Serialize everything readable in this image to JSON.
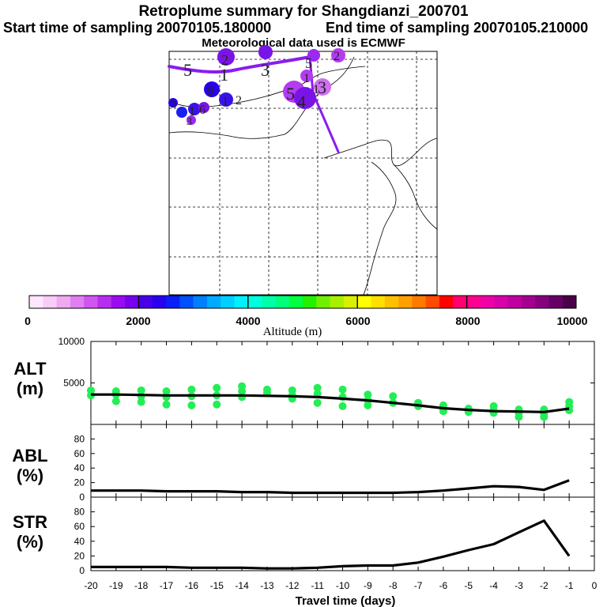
{
  "header": {
    "title": "Retroplume summary for Shangdianzi_200701",
    "start": "Start time of sampling 20070105.180000",
    "end": "End time of sampling 20070105.210000",
    "met": "Meteorological data used is ECMWF"
  },
  "map": {
    "labels": [
      "5",
      "1",
      "2",
      "3",
      "5",
      "2",
      "1",
      "5",
      "4",
      "1",
      "3",
      "9",
      "1",
      "2",
      "1",
      "6",
      "3",
      "2"
    ]
  },
  "colorbar": {
    "title": "Altitude (m)",
    "ticks": [
      "0",
      "2000",
      "4000",
      "6000",
      "8000",
      "10000"
    ],
    "min": 0,
    "max": 10000,
    "colors": [
      "#ffe6ff",
      "#f7ccf7",
      "#eeaaee",
      "#e07ff0",
      "#d055f0",
      "#b82cf0",
      "#9a0cf0",
      "#7800ee",
      "#4800e8",
      "#2a00f0",
      "#0a1ef5",
      "#0050ff",
      "#0080ff",
      "#00aaff",
      "#00cfff",
      "#00f0ff",
      "#00ffdd",
      "#00ffaa",
      "#00ff7a",
      "#00ff40",
      "#22f000",
      "#70f000",
      "#a8f000",
      "#d8f000",
      "#ffff00",
      "#ffe000",
      "#ffc000",
      "#ffa000",
      "#ff7a00",
      "#ff4a00",
      "#ff0000",
      "#ff0070",
      "#ff0090",
      "#f000a8",
      "#d800a8",
      "#c000a0",
      "#a40090",
      "#86007e",
      "#660066",
      "#4a0048"
    ]
  },
  "chart_data": [
    {
      "type": "scatter+line",
      "name": "ALT",
      "ylabel": "ALT\n(m)",
      "ylabel_lines": [
        "ALT",
        "(m)"
      ],
      "ylim": [
        0,
        10000
      ],
      "yticks": [
        "10000",
        "5000"
      ],
      "ytick_values": [
        10000,
        5000
      ],
      "x": [
        -20,
        -19,
        -18,
        -17,
        -16,
        -15,
        -14,
        -13,
        -12,
        -11,
        -10,
        -9,
        -8,
        -7,
        -6,
        -5,
        -4,
        -3,
        -2,
        -1
      ],
      "line": [
        3600,
        3600,
        3550,
        3500,
        3500,
        3500,
        3500,
        3450,
        3400,
        3300,
        3100,
        2900,
        2600,
        2300,
        1950,
        1750,
        1600,
        1550,
        1500,
        1900
      ],
      "points": [
        [
          -20,
          4100
        ],
        [
          -20,
          3500
        ],
        [
          -19,
          4000
        ],
        [
          -19,
          3600
        ],
        [
          -19,
          2800
        ],
        [
          -18,
          4100
        ],
        [
          -18,
          3400
        ],
        [
          -18,
          2700
        ],
        [
          -17,
          4000
        ],
        [
          -17,
          3300
        ],
        [
          -17,
          2400
        ],
        [
          -16,
          4200
        ],
        [
          -16,
          3400
        ],
        [
          -16,
          2300
        ],
        [
          -15,
          4400
        ],
        [
          -15,
          3500
        ],
        [
          -15,
          2400
        ],
        [
          -14,
          4600
        ],
        [
          -14,
          4000
        ],
        [
          -14,
          3300
        ],
        [
          -13,
          4200
        ],
        [
          -13,
          3800
        ],
        [
          -12,
          4100
        ],
        [
          -12,
          3500
        ],
        [
          -12,
          3100
        ],
        [
          -11,
          4400
        ],
        [
          -11,
          3700
        ],
        [
          -11,
          2600
        ],
        [
          -10,
          4200
        ],
        [
          -10,
          3300
        ],
        [
          -10,
          2200
        ],
        [
          -9,
          3600
        ],
        [
          -9,
          2900
        ],
        [
          -9,
          2300
        ],
        [
          -8,
          3400
        ],
        [
          -8,
          2600
        ],
        [
          -7,
          2600
        ],
        [
          -7,
          2200
        ],
        [
          -6,
          2300
        ],
        [
          -6,
          1900
        ],
        [
          -6,
          1600
        ],
        [
          -5,
          1900
        ],
        [
          -5,
          1500
        ],
        [
          -4,
          2200
        ],
        [
          -4,
          1700
        ],
        [
          -4,
          1400
        ],
        [
          -3,
          1800
        ],
        [
          -3,
          1400
        ],
        [
          -3,
          900
        ],
        [
          -2,
          1800
        ],
        [
          -2,
          1300
        ],
        [
          -2,
          900
        ],
        [
          -1,
          2700
        ],
        [
          -1,
          2200
        ],
        [
          -1,
          1700
        ]
      ],
      "point_color": "#22ee55",
      "line_color": "#000000"
    },
    {
      "type": "line",
      "name": "ABL",
      "ylabel_lines": [
        "ABL",
        "(%)"
      ],
      "ylim": [
        0,
        100
      ],
      "yticks": [
        "80",
        "60",
        "40",
        "20",
        "0"
      ],
      "ytick_values": [
        80,
        60,
        40,
        20,
        0
      ],
      "x": [
        -20,
        -19,
        -18,
        -17,
        -16,
        -15,
        -14,
        -13,
        -12,
        -11,
        -10,
        -9,
        -8,
        -7,
        -6,
        -5,
        -4,
        -3,
        -2,
        -1
      ],
      "values": [
        9,
        9,
        9,
        8,
        8,
        8,
        7,
        7,
        6,
        6,
        6,
        6,
        6,
        7,
        9,
        12,
        15,
        14,
        10,
        23
      ]
    },
    {
      "type": "line",
      "name": "STR",
      "ylabel_lines": [
        "STR",
        "(%)"
      ],
      "ylim": [
        0,
        100
      ],
      "yticks": [
        "80",
        "60",
        "40",
        "20",
        "0"
      ],
      "ytick_values": [
        80,
        60,
        40,
        20,
        0
      ],
      "x": [
        -20,
        -19,
        -18,
        -17,
        -16,
        -15,
        -14,
        -13,
        -12,
        -11,
        -10,
        -9,
        -8,
        -7,
        -6,
        -5,
        -4,
        -3,
        -2,
        -1
      ],
      "values": [
        5,
        5,
        5,
        5,
        4,
        4,
        4,
        3,
        3,
        4,
        6,
        7,
        7,
        11,
        19,
        28,
        36,
        52,
        68,
        20
      ]
    }
  ],
  "xaxis": {
    "label": "Travel time (days)",
    "ticks": [
      "-20",
      "-19",
      "-18",
      "-17",
      "-16",
      "-15",
      "-14",
      "-13",
      "-12",
      "-11",
      "-10",
      "-9",
      "-8",
      "-7",
      "-6",
      "-5",
      "-4",
      "-3",
      "-2",
      "-1",
      "0"
    ],
    "tick_values": [
      -20,
      -19,
      -18,
      -17,
      -16,
      -15,
      -14,
      -13,
      -12,
      -11,
      -10,
      -9,
      -8,
      -7,
      -6,
      -5,
      -4,
      -3,
      -2,
      -1,
      0
    ],
    "xlim": [
      -20,
      0
    ]
  }
}
